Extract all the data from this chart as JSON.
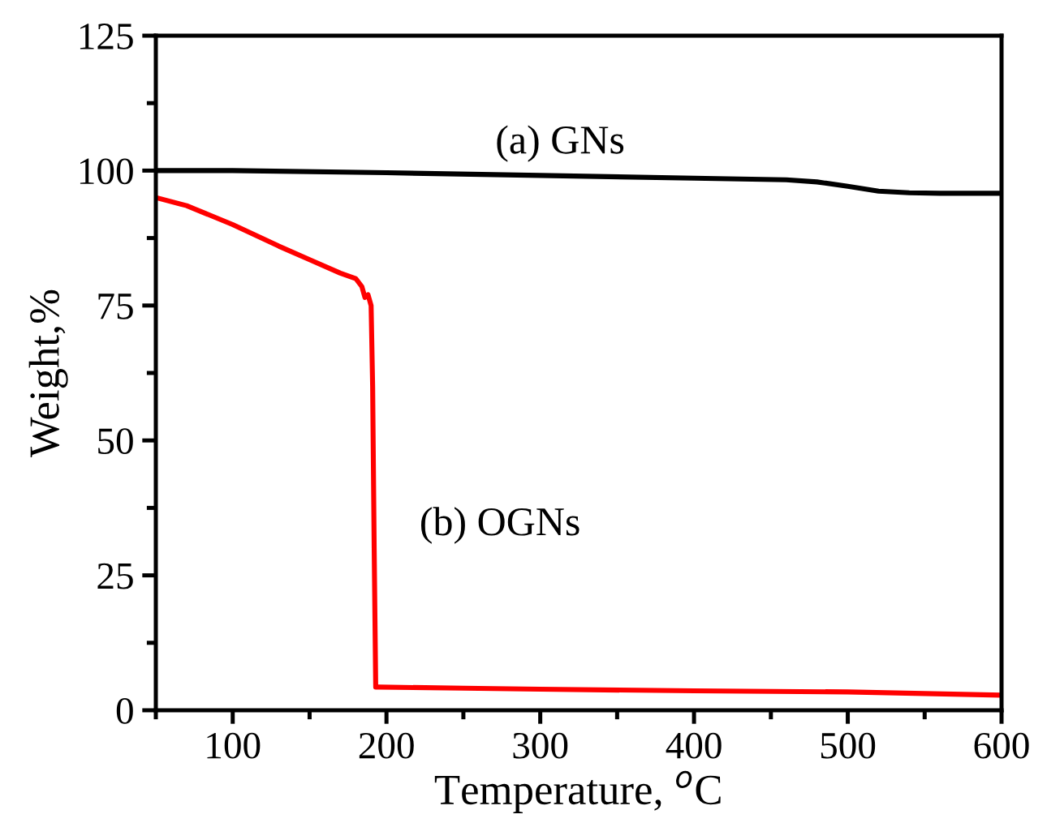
{
  "chart_data": {
    "type": "line",
    "xlabel": "Temperature, $^{o}$C",
    "ylabel": "Weight,%",
    "xlim": [
      50,
      600
    ],
    "ylim": [
      0,
      125
    ],
    "xticks": [
      100,
      200,
      300,
      400,
      500,
      600
    ],
    "yticks": [
      0,
      25,
      50,
      75,
      100,
      125
    ],
    "series": [
      {
        "color": "#000000",
        "x": [
          50,
          100,
          200,
          300,
          400,
          460,
          480,
          500,
          520,
          540,
          560,
          600
        ],
        "values": [
          100,
          100,
          99.6,
          99.1,
          98.6,
          98.3,
          97.9,
          97.1,
          96.2,
          95.9,
          95.8,
          95.8
        ]
      },
      {
        "color": "#ff0000",
        "x": [
          50,
          70,
          100,
          130,
          150,
          170,
          180,
          184,
          186,
          188,
          190,
          191,
          192,
          193,
          195,
          250,
          300,
          400,
          500,
          600
        ],
        "values": [
          95,
          93.5,
          90,
          86,
          83.5,
          81,
          80,
          78.5,
          76.5,
          77,
          75,
          60,
          30,
          4.3,
          4.3,
          4.1,
          3.9,
          3.6,
          3.4,
          2.8
        ]
      }
    ],
    "annotations": [
      "(a) GNs",
      "(b) OGNs"
    ],
    "grid": false,
    "legend": false,
    "marker": "none",
    "line_style": "solid"
  }
}
